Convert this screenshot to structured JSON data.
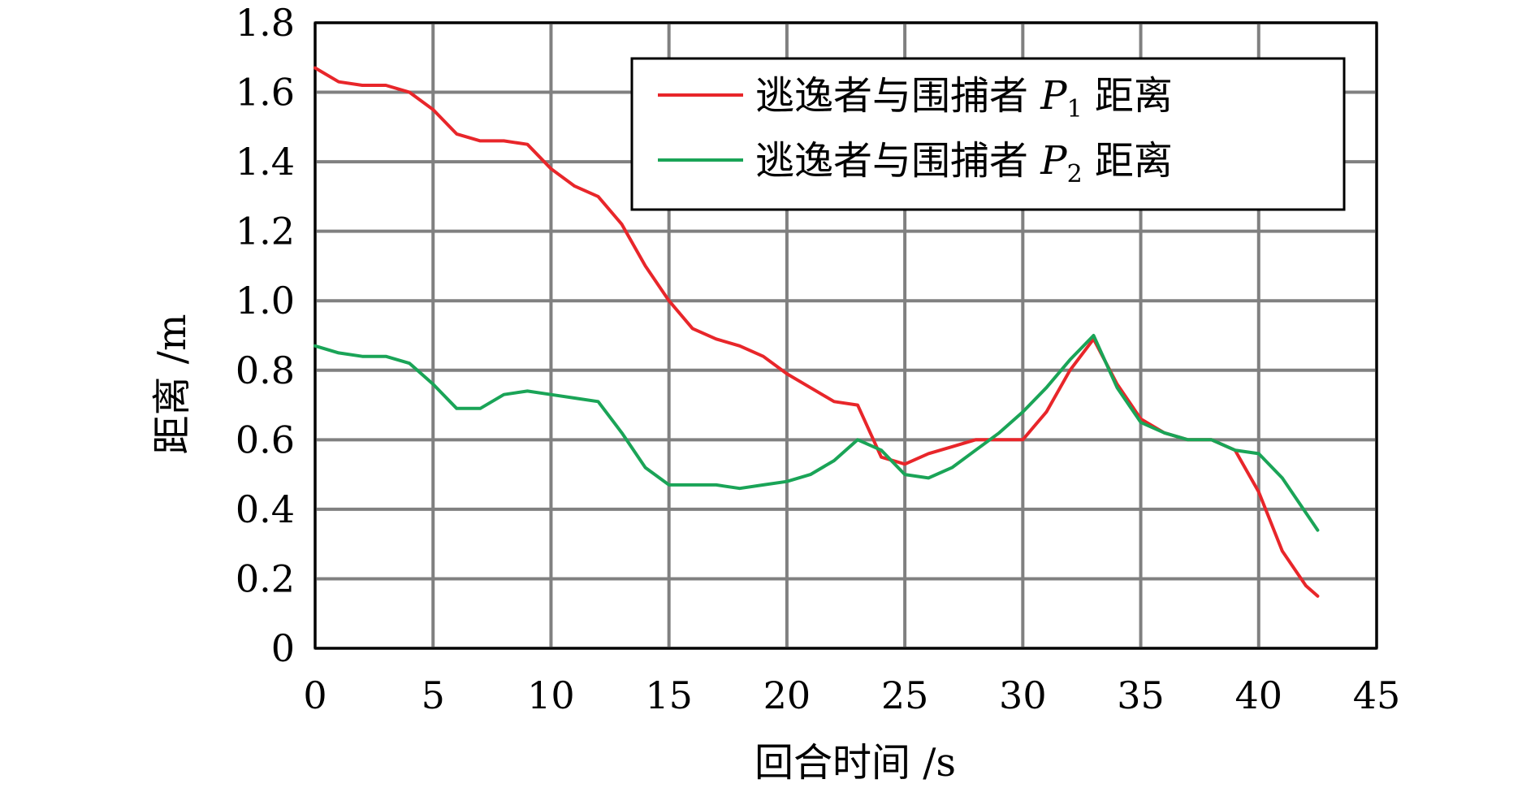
{
  "chart_data": {
    "type": "line",
    "xlabel": "回合时间 /s",
    "ylabel": "距离 /m",
    "xlim": [
      0,
      45
    ],
    "ylim": [
      0,
      1.8
    ],
    "xticks": [
      "0",
      "5",
      "10",
      "15",
      "20",
      "25",
      "30",
      "35",
      "40",
      "45"
    ],
    "yticks": [
      "0",
      "0.2",
      "0.4",
      "0.6",
      "0.8",
      "1.0",
      "1.2",
      "1.4",
      "1.6",
      "1.8"
    ],
    "grid": true,
    "legend_position": "top-right",
    "series": [
      {
        "name": "逃逸者与围捕者 P1 距离",
        "legend": {
          "prefix": "逃逸者与围捕者 ",
          "var": "P",
          "sub": "1",
          "suffix": " 距离"
        },
        "color": "#e8262a",
        "x": [
          0,
          1,
          2,
          3,
          4,
          5,
          6,
          7,
          8,
          9,
          10,
          11,
          12,
          13,
          14,
          15,
          16,
          17,
          18,
          19,
          20,
          21,
          22,
          23,
          24,
          25,
          26,
          27,
          28,
          29,
          30,
          31,
          32,
          33,
          34,
          35,
          36,
          37,
          38,
          39,
          40,
          41,
          42,
          42.5
        ],
        "y": [
          1.67,
          1.63,
          1.62,
          1.62,
          1.6,
          1.55,
          1.48,
          1.46,
          1.46,
          1.45,
          1.38,
          1.33,
          1.3,
          1.22,
          1.1,
          1.0,
          0.92,
          0.89,
          0.87,
          0.84,
          0.79,
          0.75,
          0.71,
          0.7,
          0.55,
          0.53,
          0.56,
          0.58,
          0.6,
          0.6,
          0.6,
          0.68,
          0.8,
          0.89,
          0.76,
          0.66,
          0.62,
          0.6,
          0.6,
          0.57,
          0.45,
          0.28,
          0.18,
          0.15
        ]
      },
      {
        "name": "逃逸者与围捕者 P2 距离",
        "legend": {
          "prefix": "逃逸者与围捕者 ",
          "var": "P",
          "sub": "2",
          "suffix": " 距离"
        },
        "color": "#1aa457",
        "x": [
          0,
          1,
          2,
          3,
          4,
          5,
          6,
          7,
          8,
          9,
          10,
          11,
          12,
          13,
          14,
          15,
          16,
          17,
          18,
          19,
          20,
          21,
          22,
          23,
          24,
          25,
          26,
          27,
          28,
          29,
          30,
          31,
          32,
          33,
          34,
          35,
          36,
          37,
          38,
          39,
          40,
          41,
          42,
          42.5
        ],
        "y": [
          0.87,
          0.85,
          0.84,
          0.84,
          0.82,
          0.76,
          0.69,
          0.69,
          0.73,
          0.74,
          0.73,
          0.72,
          0.71,
          0.62,
          0.52,
          0.47,
          0.47,
          0.47,
          0.46,
          0.47,
          0.48,
          0.5,
          0.54,
          0.6,
          0.57,
          0.5,
          0.49,
          0.52,
          0.57,
          0.62,
          0.68,
          0.75,
          0.83,
          0.9,
          0.75,
          0.65,
          0.62,
          0.6,
          0.6,
          0.57,
          0.56,
          0.49,
          0.39,
          0.34
        ]
      }
    ]
  }
}
